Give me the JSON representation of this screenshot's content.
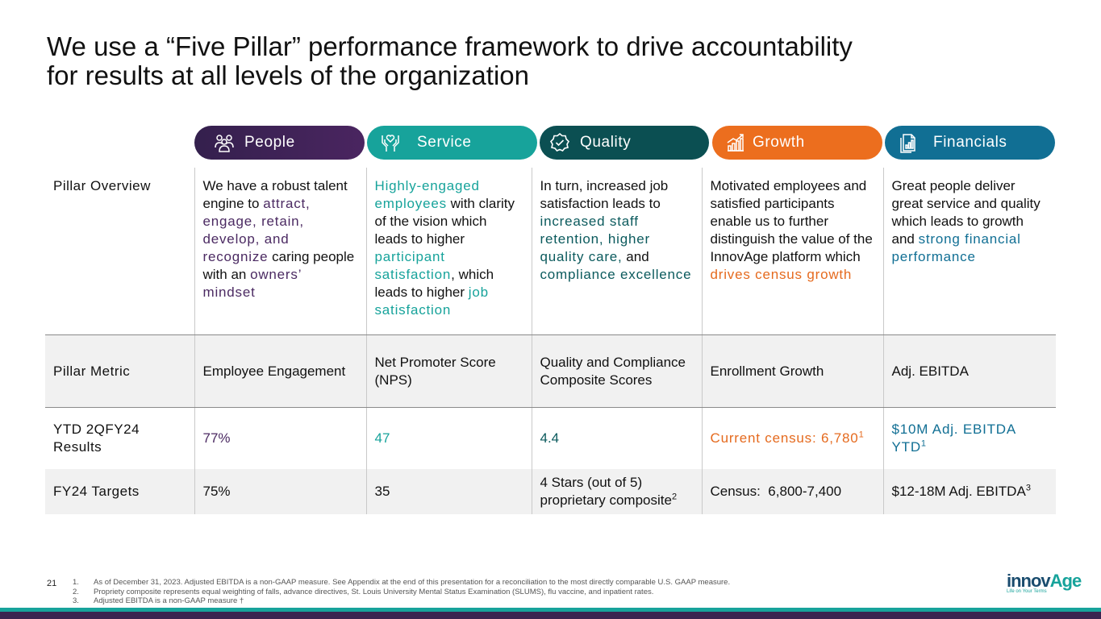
{
  "title": {
    "line1": "We use a “Five Pillar” performance framework to drive accountability",
    "line2": "for results at all levels of the organization"
  },
  "pillars": [
    {
      "label": "People",
      "icon": "people-icon",
      "color": "#4a2560"
    },
    {
      "label": "Service",
      "icon": "hands-heart-icon",
      "color": "#17a39b"
    },
    {
      "label": "Quality",
      "icon": "badge-check-icon",
      "color": "#0b4f52"
    },
    {
      "label": "Growth",
      "icon": "growth-chart-icon",
      "color": "#ec6e1e"
    },
    {
      "label": "Financials",
      "icon": "financial-doc-icon",
      "color": "#116f94"
    }
  ],
  "rows": {
    "overview": {
      "label": "Pillar Overview",
      "people": {
        "t1": "We have a robust talent engine to ",
        "h1": "attract, engage, retain, develop, and recognize",
        "t2": " caring people with an ",
        "h2": "owners’ mindset"
      },
      "service": {
        "h1": "Highly-engaged employees",
        "t1": " with clarity of the vision which leads to higher ",
        "h2": "participant satisfaction",
        "t2": ", which leads to higher ",
        "h3": "job satisfaction"
      },
      "quality": {
        "t1": "In turn, increased job satisfaction leads to ",
        "h1": "increased staff retention, higher quality care,",
        "t2": " and ",
        "h2": "compliance excellence"
      },
      "growth": {
        "t1": "Motivated employees and satisfied participants enable us to further distinguish the value of the InnovAge platform which ",
        "h1": "drives census growth"
      },
      "financials": {
        "t1": "Great people deliver great service and quality which leads to growth and ",
        "h1": "strong financial performance"
      }
    },
    "metric": {
      "label": "Pillar Metric",
      "people": "Employee Engagement",
      "service": "Net Promoter Score (NPS)",
      "quality": "Quality and Compliance Composite Scores",
      "growth": "Enrollment Growth",
      "financials": "Adj. EBITDA"
    },
    "results": {
      "label": "YTD 2QFY24 Results",
      "people": "77%",
      "service": "47",
      "quality": "4.4",
      "growth": "Current census: 6,780",
      "growth_sup": "1",
      "financials": "$10M Adj. EBITDA YTD",
      "financials_sup": "1"
    },
    "targets": {
      "label": "FY24 Targets",
      "people": "75%",
      "service": "35",
      "quality": "4 Stars (out of 5) proprietary composite",
      "quality_sup": "2",
      "growth": "Census:  6,800-7,400",
      "financials": "$12-18M Adj. EBITDA",
      "financials_sup": "3"
    }
  },
  "page_number": "21",
  "footnotes": [
    {
      "num": "1.",
      "text": "As of December 31, 2023. Adjusted EBITDA is a non-GAAP measure. See Appendix at the end of this presentation for a reconciliation to the most directly comparable U.S. GAAP measure."
    },
    {
      "num": "2.",
      "text": "Propriety composite represents equal weighting of falls, advance directives, St. Louis University Mental Status Examination (SLUMS), flu vaccine, and inpatient rates."
    },
    {
      "num": "3.",
      "text": "Adjusted EBITDA is a non-GAAP measure †"
    }
  ],
  "logo": {
    "part1": "innov",
    "part2": "Age",
    "tagline": "Life on Your Terms"
  },
  "colors": {
    "purple": "#4b2a62",
    "teal": "#17a39b",
    "dark_teal": "#0b5a5d",
    "orange": "#e56a1e",
    "blue": "#116f94"
  }
}
